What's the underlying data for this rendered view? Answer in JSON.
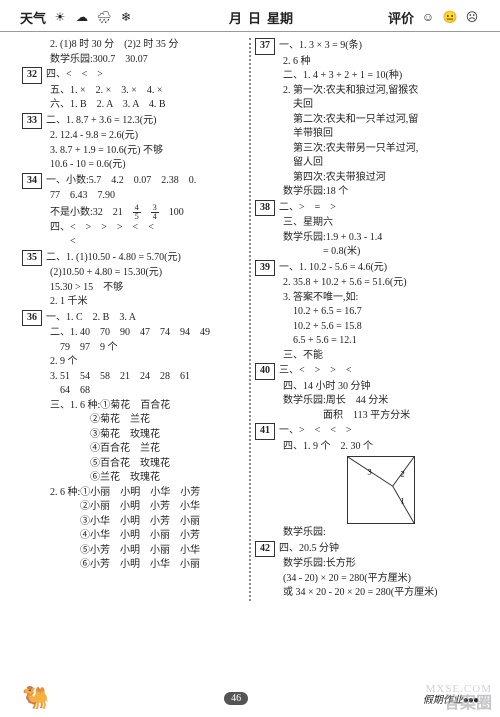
{
  "header": {
    "weather": "天气",
    "month": "月",
    "day": "日",
    "week": "星期",
    "eval": "评价"
  },
  "left": [
    {
      "t": "2. (1)8 时 30 分　(2)2 时 35 分"
    },
    {
      "t": "数学乐园:300.7　30.07"
    },
    {
      "q": "32",
      "t": "四、<　<　>"
    },
    {
      "t": "五、1. ×　2. ×　3. ×　4. ×"
    },
    {
      "t": "六、1. B　2. A　3. A　4. B"
    },
    {
      "q": "33",
      "t": "二、1. 8.7 + 3.6 = 12.3(元)"
    },
    {
      "t": "2. 12.4 - 9.8 = 2.6(元)"
    },
    {
      "t": "3. 8.7 + 1.9 = 10.6(元) 不够"
    },
    {
      "t": "10.6 - 10 = 0.6(元)"
    },
    {
      "q": "34",
      "t": "一、小数:5.7　4.2　0.07　2.38　0."
    },
    {
      "t": "77　6.43　7.90"
    },
    {
      "t": "不是小数:32　21　",
      "frA": {
        "n": "4",
        "d": "5"
      },
      "mid": "　",
      "frB": {
        "n": "3",
        "d": "4"
      },
      "end": "　100"
    },
    {
      "t": "四、<　>　>　>　<　<"
    },
    {
      "t": "　　<"
    },
    {
      "q": "35",
      "t": "二、1. (1)10.50 - 4.80 = 5.70(元)"
    },
    {
      "t": "(2)10.50 + 4.80 = 15.30(元)"
    },
    {
      "t": "15.30 > 15　不够"
    },
    {
      "t": "2. 1 千米"
    },
    {
      "q": "36",
      "t": "一、1. C　2. B　3. A"
    },
    {
      "t": "二、1. 40　70　90　47　74　94　49"
    },
    {
      "t": "　79　97　9 个"
    },
    {
      "t": "2. 9 个"
    },
    {
      "t": "3. 51　54　58　21　24　28　61"
    },
    {
      "t": "　64　68"
    },
    {
      "t": "三、1. 6 种:①菊花　百合花"
    },
    {
      "t": "　　　　②菊花　兰花"
    },
    {
      "t": "　　　　③菊花　玫瑰花"
    },
    {
      "t": "　　　　④百合花　兰花"
    },
    {
      "t": "　　　　⑤百合花　玫瑰花"
    },
    {
      "t": "　　　　⑥兰花　玫瑰花"
    },
    {
      "t": "2. 6 种:①小丽　小明　小华　小芳"
    },
    {
      "t": "　　　②小丽　小明　小芳　小华"
    },
    {
      "t": "　　　③小华　小明　小芳　小丽"
    },
    {
      "t": "　　　④小华　小明　小丽　小芳"
    },
    {
      "t": "　　　⑤小芳　小明　小丽　小华"
    },
    {
      "t": "　　　⑥小芳　小明　小华　小丽"
    }
  ],
  "right": [
    {
      "q": "37",
      "t": "一、1. 3 × 3 = 9(条)"
    },
    {
      "t": "2. 6 种"
    },
    {
      "t": "二、1. 4 + 3 + 2 + 1 = 10(种)"
    },
    {
      "t": "2. 第一次:农夫和狼过河,留猴农"
    },
    {
      "t": "　夫回"
    },
    {
      "t": "　第二次:农夫和一只羊过河,留"
    },
    {
      "t": "　羊带狼回"
    },
    {
      "t": "　第三次:农夫带另一只羊过河,"
    },
    {
      "t": "　留人回"
    },
    {
      "t": "　第四次:农夫带狼过河"
    },
    {
      "t": "数学乐园:18 个"
    },
    {
      "q": "38",
      "t": "二、>　=　>"
    },
    {
      "t": "三、星期六"
    },
    {
      "t": "数学乐园:1.9 + 0.3 - 1.4"
    },
    {
      "t": "　　　　= 0.8(米)"
    },
    {
      "q": "39",
      "t": "一、1. 10.2 - 5.6 = 4.6(元)"
    },
    {
      "t": "2. 35.8 + 10.2 + 5.6 = 51.6(元)"
    },
    {
      "t": "3. 答案不唯一,如:"
    },
    {
      "t": "　10.2 + 6.5 = 16.7"
    },
    {
      "t": "　10.2 + 5.6 = 15.8"
    },
    {
      "t": "　6.5 + 5.6 = 12.1"
    },
    {
      "t": "三、不能"
    },
    {
      "q": "40",
      "t": "三、<　>　>　<"
    },
    {
      "t": "四、14 小时 30 分钟"
    },
    {
      "t": "数学乐园:周长　44 分米"
    },
    {
      "t": "　　　　面积　113 平方分米"
    },
    {
      "q": "41",
      "t": "一、>　<　<　>"
    },
    {
      "t": "四、1. 9 个　2. 30 个"
    },
    {
      "diag": true
    },
    {
      "t": "数学乐园:"
    },
    {
      "q": "42",
      "t": "四、20.5 分钟"
    },
    {
      "t": "数学乐园:长方形"
    },
    {
      "t": "(34 - 20) × 20 = 280(平方厘米)"
    },
    {
      "t": "或 34 × 20 - 20 × 20 = 280(平方厘米)"
    }
  ],
  "diagram": {
    "labels": [
      "3",
      "2",
      "1"
    ],
    "stroke": "#333"
  },
  "footer": {
    "page": "46",
    "title": "假期作业"
  },
  "watermark": {
    "a": "答案圈",
    "b": "MXSE.COM"
  }
}
